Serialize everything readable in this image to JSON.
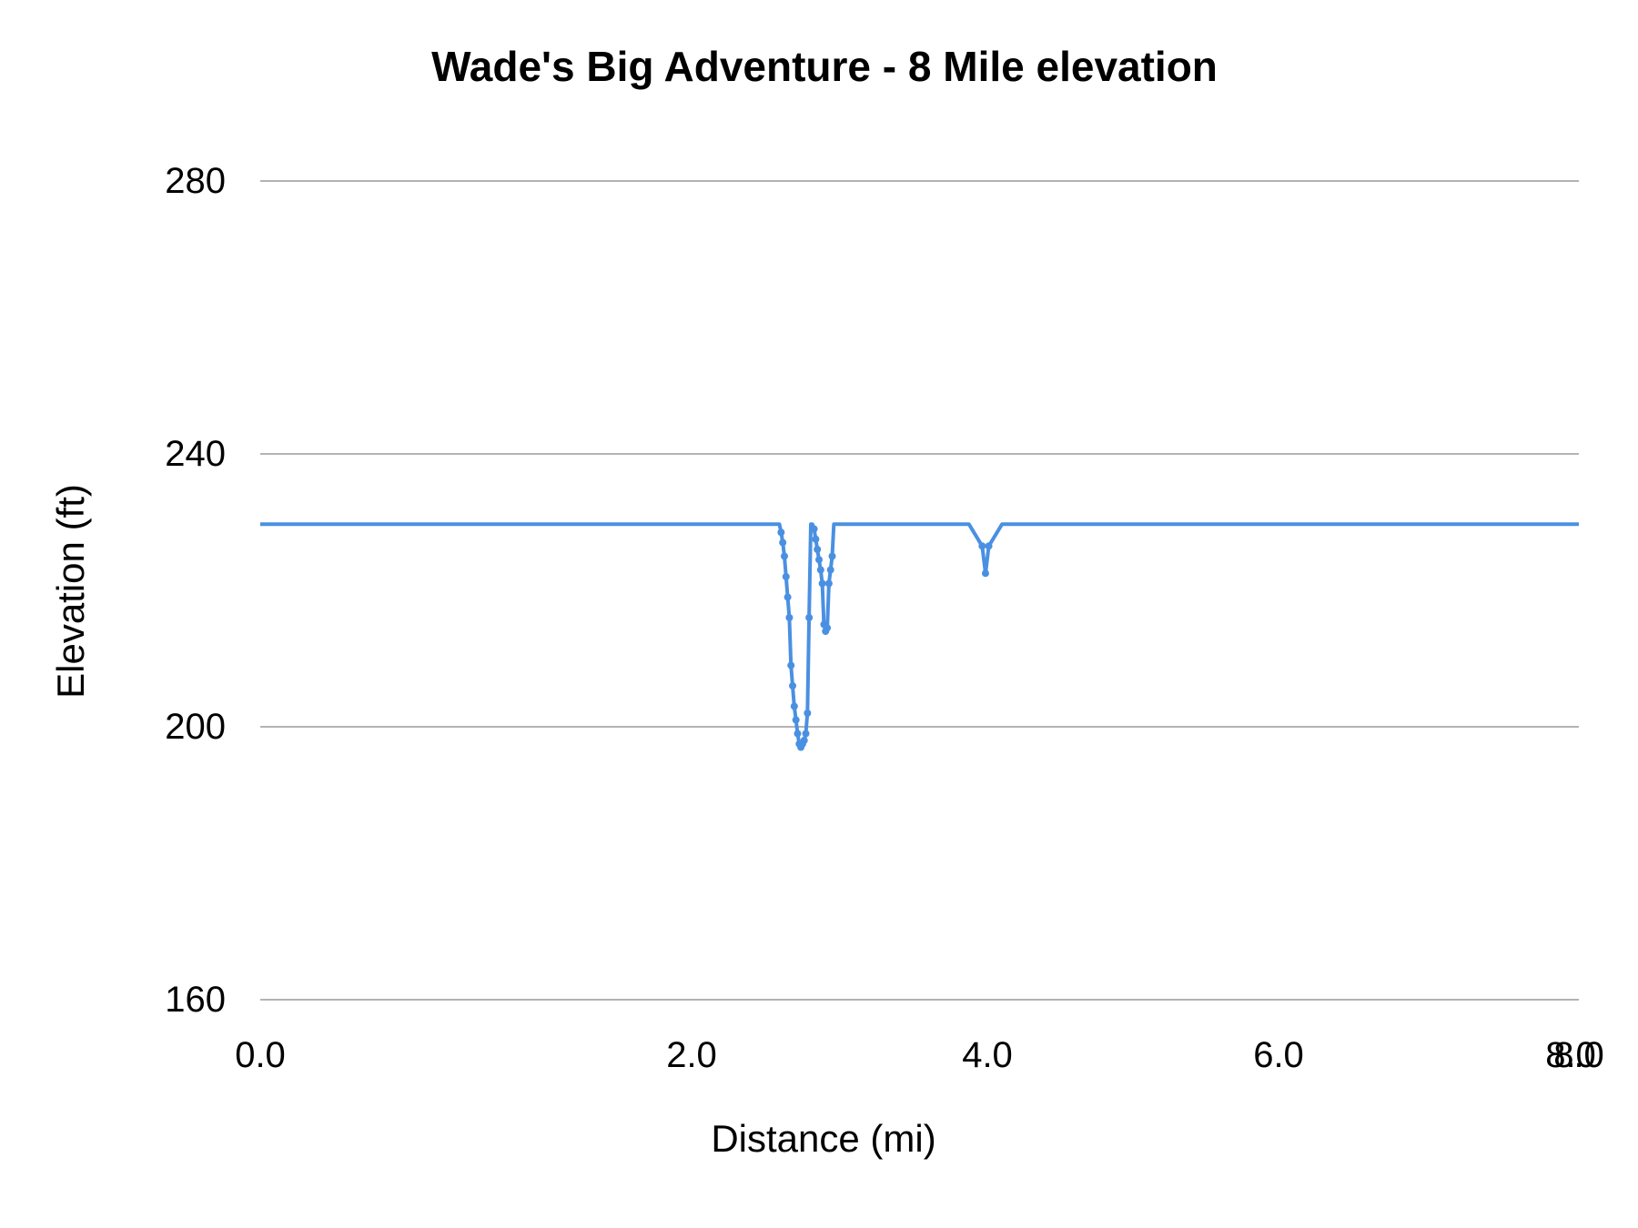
{
  "chart_data": {
    "type": "line",
    "title": "Wade's Big Adventure - 8 Mile elevation",
    "xlabel": "Distance (mi)",
    "ylabel": "Elevation (ft)",
    "ylim": [
      160,
      280
    ],
    "xlim": [
      0,
      8
    ],
    "yticks": [
      "280",
      "240",
      "200",
      "160"
    ],
    "xticks": [
      "0.0",
      "2.0",
      "4.0",
      "6.0",
      "8.0",
      "8.0"
    ],
    "grid": "horizontal",
    "legend": "none",
    "series_color": "#4a90e2",
    "series": [
      {
        "name": "Elevation",
        "x": [
          0.0,
          2.5,
          3.15,
          3.16,
          3.17,
          3.18,
          3.19,
          3.2,
          3.21,
          3.22,
          3.23,
          3.24,
          3.25,
          3.26,
          3.27,
          3.28,
          3.29,
          3.3,
          3.31,
          3.32,
          3.33,
          3.34,
          3.35,
          3.36,
          3.37,
          3.38,
          3.39,
          3.4,
          3.41,
          3.42,
          3.43,
          3.44,
          3.45,
          3.46,
          3.47,
          3.48,
          3.49,
          3.5,
          3.51,
          3.52,
          3.53,
          3.55,
          4.3,
          4.38,
          4.4,
          4.42,
          4.5,
          8.0
        ],
        "y": [
          229.7,
          229.7,
          229.7,
          228.5,
          227,
          225,
          222,
          219,
          216,
          209,
          206,
          203,
          201,
          199,
          197.5,
          197,
          197.5,
          198,
          199,
          202,
          216,
          229.7,
          229.7,
          229,
          227.5,
          226,
          224.5,
          223,
          221,
          215,
          214,
          214.5,
          221,
          223,
          225,
          229.7,
          229.7,
          229.7,
          229.7,
          229.7,
          229.7,
          229.7,
          229.7,
          226.5,
          222.5,
          226.5,
          229.7,
          229.7
        ]
      }
    ]
  }
}
